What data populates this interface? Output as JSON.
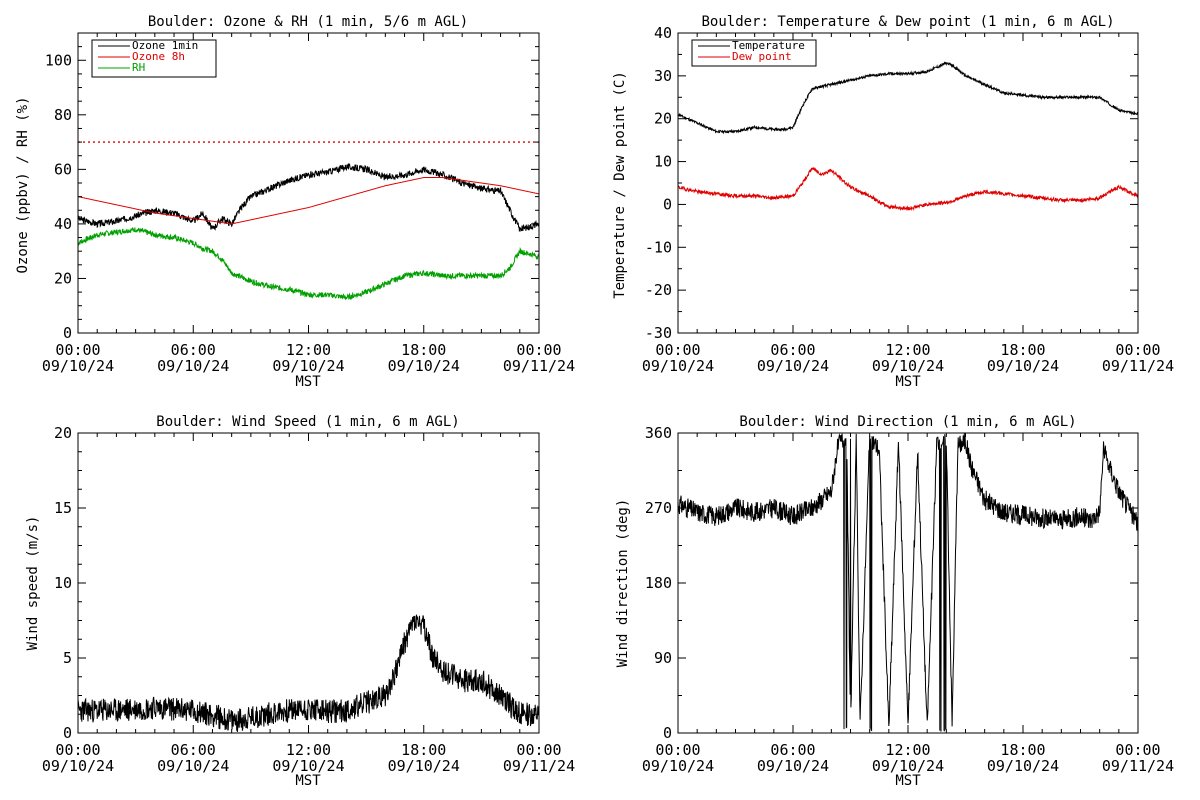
{
  "colors": {
    "black": "#000000",
    "red": "#e00000",
    "green": "#00a000"
  },
  "chart_data": [
    {
      "type": "line",
      "title": "Boulder: Ozone & RH (1 min, 5/6 m AGL)",
      "ylabel": "Ozone (ppbv) / RH (%)",
      "xlabel": "MST",
      "xlim": [
        0,
        24
      ],
      "ylim": [
        0,
        110
      ],
      "yticks": [
        0,
        20,
        40,
        60,
        80,
        100
      ],
      "xticks": [
        {
          "h": 0,
          "time": "00:00",
          "date": "09/10/24"
        },
        {
          "h": 6,
          "time": "06:00",
          "date": "09/10/24"
        },
        {
          "h": 12,
          "time": "12:00",
          "date": "09/10/24"
        },
        {
          "h": 18,
          "time": "18:00",
          "date": "09/10/24"
        },
        {
          "h": 24,
          "time": "00:00",
          "date": "09/11/24"
        }
      ],
      "legend": [
        {
          "label": "Ozone 1min",
          "color": "#000000"
        },
        {
          "label": "Ozone 8h",
          "color": "#e00000"
        },
        {
          "label": "RH",
          "color": "#00a000"
        }
      ],
      "legend_position": "top-left",
      "reference_line": {
        "y": 70,
        "color": "#e00000",
        "style": "dotted"
      },
      "series": [
        {
          "name": "Ozone 1min",
          "color": "#000000",
          "noise": 1.2,
          "seed": 3,
          "x": [
            0,
            1,
            2,
            3,
            4,
            5,
            6,
            6.5,
            7,
            7.5,
            8,
            8.5,
            9,
            10,
            11,
            12,
            13,
            14,
            15,
            16,
            17,
            18,
            19,
            20,
            21,
            22,
            22.5,
            23,
            24
          ],
          "y": [
            42,
            40,
            41,
            43,
            45,
            44,
            41,
            44,
            38,
            42,
            40,
            46,
            50,
            53,
            56,
            58,
            59,
            61,
            60,
            57,
            58,
            60,
            58,
            55,
            53,
            52,
            45,
            38,
            40
          ]
        },
        {
          "name": "Ozone 8h",
          "color": "#e00000",
          "noise": 0,
          "seed": 0,
          "x": [
            0,
            2,
            4,
            6,
            8,
            10,
            12,
            14,
            16,
            18,
            19,
            20,
            22,
            24
          ],
          "y": [
            50,
            47,
            44,
            42,
            40,
            43,
            46,
            50,
            54,
            57,
            57,
            56,
            54,
            51
          ]
        },
        {
          "name": "RH",
          "color": "#00a000",
          "noise": 1.0,
          "seed": 7,
          "x": [
            0,
            1,
            2,
            3,
            4,
            5,
            6,
            6.5,
            7,
            7.5,
            8,
            9,
            10,
            11,
            12,
            13,
            14,
            15,
            16,
            17,
            18,
            19,
            20,
            21,
            22,
            22.5,
            23,
            24
          ],
          "y": [
            33,
            36,
            37,
            38,
            36,
            35,
            33,
            31,
            30,
            27,
            22,
            19,
            17,
            16,
            14,
            14,
            13,
            15,
            18,
            21,
            22,
            21,
            21,
            21,
            21,
            24,
            30,
            28
          ]
        }
      ]
    },
    {
      "type": "line",
      "title": "Boulder: Temperature & Dew point (1 min, 6 m AGL)",
      "ylabel": "Temperature / Dew point (C)",
      "xlabel": "MST",
      "xlim": [
        0,
        24
      ],
      "ylim": [
        -30,
        40
      ],
      "yticks": [
        -30,
        -20,
        -10,
        0,
        10,
        20,
        30,
        40
      ],
      "xticks": [
        {
          "h": 0,
          "time": "00:00",
          "date": "09/10/24"
        },
        {
          "h": 6,
          "time": "06:00",
          "date": "09/10/24"
        },
        {
          "h": 12,
          "time": "12:00",
          "date": "09/10/24"
        },
        {
          "h": 18,
          "time": "18:00",
          "date": "09/10/24"
        },
        {
          "h": 24,
          "time": "00:00",
          "date": "09/11/24"
        }
      ],
      "legend": [
        {
          "label": "Temperature",
          "color": "#000000"
        },
        {
          "label": "Dew point",
          "color": "#e00000"
        }
      ],
      "legend_position": "top-left",
      "series": [
        {
          "name": "Temperature",
          "color": "#000000",
          "noise": 0.3,
          "seed": 11,
          "x": [
            0,
            1,
            2,
            3,
            4,
            5,
            5.5,
            6,
            6.5,
            7,
            8,
            9,
            10,
            11,
            12,
            13,
            14,
            14.3,
            15,
            16,
            17,
            18,
            19,
            20,
            21,
            22,
            23,
            24
          ],
          "y": [
            21,
            19,
            17,
            17,
            18,
            17.5,
            17.5,
            18,
            23,
            27,
            28,
            29,
            30,
            30.5,
            30.5,
            31,
            33,
            32.5,
            30,
            28,
            26,
            25.5,
            25,
            25,
            25,
            25,
            22,
            21
          ]
        },
        {
          "name": "Dew point",
          "color": "#e00000",
          "noise": 0.4,
          "seed": 19,
          "x": [
            0,
            1,
            2,
            3,
            4,
            5,
            6,
            6.5,
            7,
            7.5,
            8,
            9,
            10,
            10.5,
            11,
            12,
            13,
            14,
            14.5,
            15,
            16,
            17,
            18,
            19,
            20,
            21,
            22,
            22.5,
            23,
            24
          ],
          "y": [
            4,
            3,
            2.5,
            2,
            2,
            1.5,
            2,
            5,
            8.5,
            7,
            8,
            4,
            2,
            0.5,
            -0.5,
            -1,
            0,
            0.5,
            1,
            2,
            3,
            2.5,
            2,
            1.5,
            1,
            1,
            1.5,
            3,
            4,
            2
          ]
        }
      ]
    },
    {
      "type": "line",
      "title": "Boulder: Wind Speed (1 min, 6 m AGL)",
      "ylabel": "Wind speed (m/s)",
      "xlabel": "MST",
      "xlim": [
        0,
        24
      ],
      "ylim": [
        0,
        20
      ],
      "yticks": [
        0,
        5,
        10,
        15,
        20
      ],
      "xticks": [
        {
          "h": 0,
          "time": "00:00",
          "date": "09/10/24"
        },
        {
          "h": 6,
          "time": "06:00",
          "date": "09/10/24"
        },
        {
          "h": 12,
          "time": "12:00",
          "date": "09/10/24"
        },
        {
          "h": 18,
          "time": "18:00",
          "date": "09/10/24"
        },
        {
          "h": 24,
          "time": "00:00",
          "date": "09/11/24"
        }
      ],
      "series": [
        {
          "name": "",
          "color": "#000000",
          "noise": 0.8,
          "seed": 23,
          "x": [
            0,
            2,
            4,
            6,
            7,
            8,
            9,
            10,
            11,
            12,
            13,
            14,
            15,
            16,
            16.5,
            17,
            17.5,
            18,
            18.5,
            19,
            20,
            21,
            22,
            23,
            24
          ],
          "y": [
            1.5,
            1.5,
            1.7,
            1.5,
            1.2,
            0.8,
            1.0,
            1.3,
            1.5,
            1.6,
            1.4,
            1.5,
            2.0,
            2.5,
            4.0,
            6.0,
            7.5,
            7.0,
            5.0,
            4.2,
            3.5,
            3.5,
            2.5,
            1.3,
            1.2
          ]
        }
      ]
    },
    {
      "type": "line",
      "title": "Boulder: Wind Direction (1 min, 6 m AGL)",
      "ylabel": "Wind direction (deg)",
      "xlabel": "MST",
      "xlim": [
        0,
        24
      ],
      "ylim": [
        0,
        360
      ],
      "yticks": [
        0,
        90,
        180,
        270,
        360
      ],
      "xticks": [
        {
          "h": 0,
          "time": "00:00",
          "date": "09/10/24"
        },
        {
          "h": 6,
          "time": "06:00",
          "date": "09/10/24"
        },
        {
          "h": 12,
          "time": "12:00",
          "date": "09/10/24"
        },
        {
          "h": 18,
          "time": "18:00",
          "date": "09/10/24"
        },
        {
          "h": 24,
          "time": "00:00",
          "date": "09/11/24"
        }
      ],
      "series": [
        {
          "name": "",
          "color": "#000000",
          "noise": 12,
          "seed": 31,
          "x": [
            0,
            1,
            2,
            3,
            4,
            5,
            6,
            7,
            7.5,
            8,
            8.3,
            8.5,
            8.8,
            9,
            9.3,
            9.5,
            10,
            10.5,
            11,
            11.5,
            12,
            12.5,
            13,
            13.5,
            14,
            14.3,
            14.6,
            15,
            15.3,
            16,
            17,
            18,
            19,
            20,
            21,
            21.5,
            22,
            22.2,
            22.5,
            23,
            24
          ],
          "y": [
            275,
            265,
            260,
            270,
            265,
            270,
            260,
            270,
            280,
            290,
            340,
            350,
            355,
            5,
            350,
            10,
            355,
            340,
            5,
            350,
            10,
            340,
            5,
            350,
            355,
            10,
            345,
            350,
            320,
            280,
            265,
            262,
            258,
            255,
            260,
            255,
            265,
            340,
            320,
            290,
            250
          ]
        }
      ]
    }
  ]
}
